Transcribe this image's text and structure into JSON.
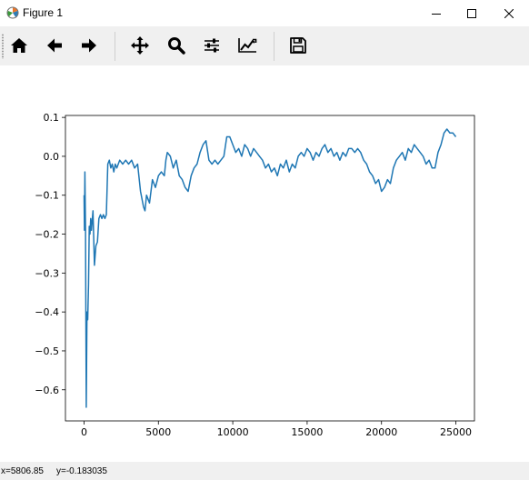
{
  "window": {
    "title": "Figure 1",
    "icons": {
      "app": "matplotlib-icon",
      "minimize": "minimize-icon",
      "maximize": "maximize-icon",
      "close": "close-icon"
    }
  },
  "toolbar": {
    "tools": [
      "home-icon",
      "back-arrow-icon",
      "forward-arrow-icon",
      "pan-icon",
      "zoom-icon",
      "configure-subplots-icon",
      "edit-axes-icon",
      "save-icon"
    ]
  },
  "status": {
    "x_readout": "x=5806.85",
    "y_readout": "y=-0.183035"
  },
  "chart_data": {
    "type": "line",
    "title": "",
    "xlabel": "",
    "ylabel": "",
    "xlim": [
      -1250,
      26250
    ],
    "ylim": [
      -0.68,
      0.105
    ],
    "x_ticks": [
      0,
      5000,
      10000,
      15000,
      20000,
      25000
    ],
    "x_tick_labels": [
      "0",
      "5000",
      "10000",
      "15000",
      "20000",
      "25000"
    ],
    "y_ticks": [
      0.1,
      0.0,
      -0.1,
      -0.2,
      -0.3,
      -0.4,
      -0.5,
      -0.6
    ],
    "y_tick_labels": [
      "0.1",
      "0.0",
      "−0.1",
      "−0.2",
      "−0.3",
      "−0.4",
      "−0.5",
      "−0.6"
    ],
    "grid": false,
    "line_color": "#1f77b4",
    "series": [
      {
        "x": [
          0,
          30,
          60,
          100,
          150,
          200,
          250,
          300,
          350,
          400,
          450,
          500,
          600,
          700,
          800,
          900,
          1000,
          1100,
          1200,
          1300,
          1400,
          1500,
          1600,
          1700,
          1800,
          1900,
          2000,
          2100,
          2200,
          2400,
          2600,
          2800,
          3000,
          3200,
          3400,
          3600,
          3800,
          4000,
          4100,
          4200,
          4400,
          4600,
          4800,
          5000,
          5200,
          5400,
          5500,
          5600,
          5800,
          6000,
          6200,
          6400,
          6600,
          6800,
          7000,
          7200,
          7400,
          7600,
          7800,
          8000,
          8200,
          8400,
          8600,
          8800,
          9000,
          9200,
          9400,
          9600,
          9800,
          10000,
          10200,
          10400,
          10600,
          10800,
          11000,
          11200,
          11400,
          11600,
          11800,
          12000,
          12200,
          12400,
          12600,
          12800,
          13000,
          13200,
          13400,
          13600,
          13800,
          14000,
          14200,
          14400,
          14600,
          14800,
          15000,
          15200,
          15400,
          15600,
          15800,
          16000,
          16200,
          16400,
          16600,
          16800,
          17000,
          17200,
          17400,
          17600,
          17800,
          18000,
          18200,
          18400,
          18600,
          18800,
          19000,
          19200,
          19400,
          19600,
          19800,
          20000,
          20200,
          20400,
          20600,
          20800,
          21000,
          21200,
          21400,
          21600,
          21800,
          22000,
          22200,
          22400,
          22600,
          22800,
          23000,
          23200,
          23400,
          23600,
          23800,
          24000,
          24200,
          24400,
          24600,
          24800,
          25000
        ],
        "y": [
          -0.1,
          -0.19,
          -0.04,
          -0.19,
          -0.645,
          -0.4,
          -0.42,
          -0.33,
          -0.18,
          -0.2,
          -0.16,
          -0.19,
          -0.14,
          -0.28,
          -0.23,
          -0.22,
          -0.16,
          -0.15,
          -0.16,
          -0.15,
          -0.16,
          -0.15,
          -0.02,
          -0.01,
          -0.03,
          -0.02,
          -0.04,
          -0.02,
          -0.03,
          -0.01,
          -0.02,
          -0.01,
          -0.02,
          -0.01,
          -0.03,
          -0.02,
          -0.09,
          -0.13,
          -0.14,
          -0.1,
          -0.12,
          -0.06,
          -0.08,
          -0.05,
          -0.04,
          -0.05,
          -0.01,
          0.01,
          0.0,
          -0.03,
          -0.01,
          -0.05,
          -0.06,
          -0.08,
          -0.09,
          -0.05,
          -0.03,
          -0.02,
          0.01,
          0.03,
          0.04,
          -0.01,
          -0.02,
          -0.01,
          -0.02,
          -0.01,
          0.0,
          0.05,
          0.05,
          0.03,
          0.01,
          0.02,
          0.0,
          0.03,
          0.02,
          0.0,
          0.02,
          0.01,
          0.0,
          -0.01,
          -0.03,
          -0.02,
          -0.04,
          -0.03,
          -0.05,
          -0.02,
          -0.03,
          -0.01,
          -0.04,
          -0.02,
          -0.03,
          0.0,
          0.01,
          0.0,
          0.02,
          0.01,
          -0.01,
          0.01,
          0.0,
          0.02,
          0.03,
          0.01,
          0.02,
          0.0,
          0.01,
          -0.01,
          0.01,
          0.0,
          0.02,
          0.02,
          0.01,
          0.02,
          0.01,
          -0.01,
          -0.02,
          -0.04,
          -0.05,
          -0.07,
          -0.06,
          -0.09,
          -0.08,
          -0.06,
          -0.07,
          -0.03,
          -0.01,
          0.0,
          0.01,
          -0.01,
          0.02,
          0.01,
          0.03,
          0.02,
          0.01,
          0.0,
          -0.02,
          -0.01,
          -0.03,
          -0.03,
          0.01,
          0.03,
          0.06,
          0.07,
          0.06,
          0.06,
          0.05
        ]
      }
    ]
  }
}
